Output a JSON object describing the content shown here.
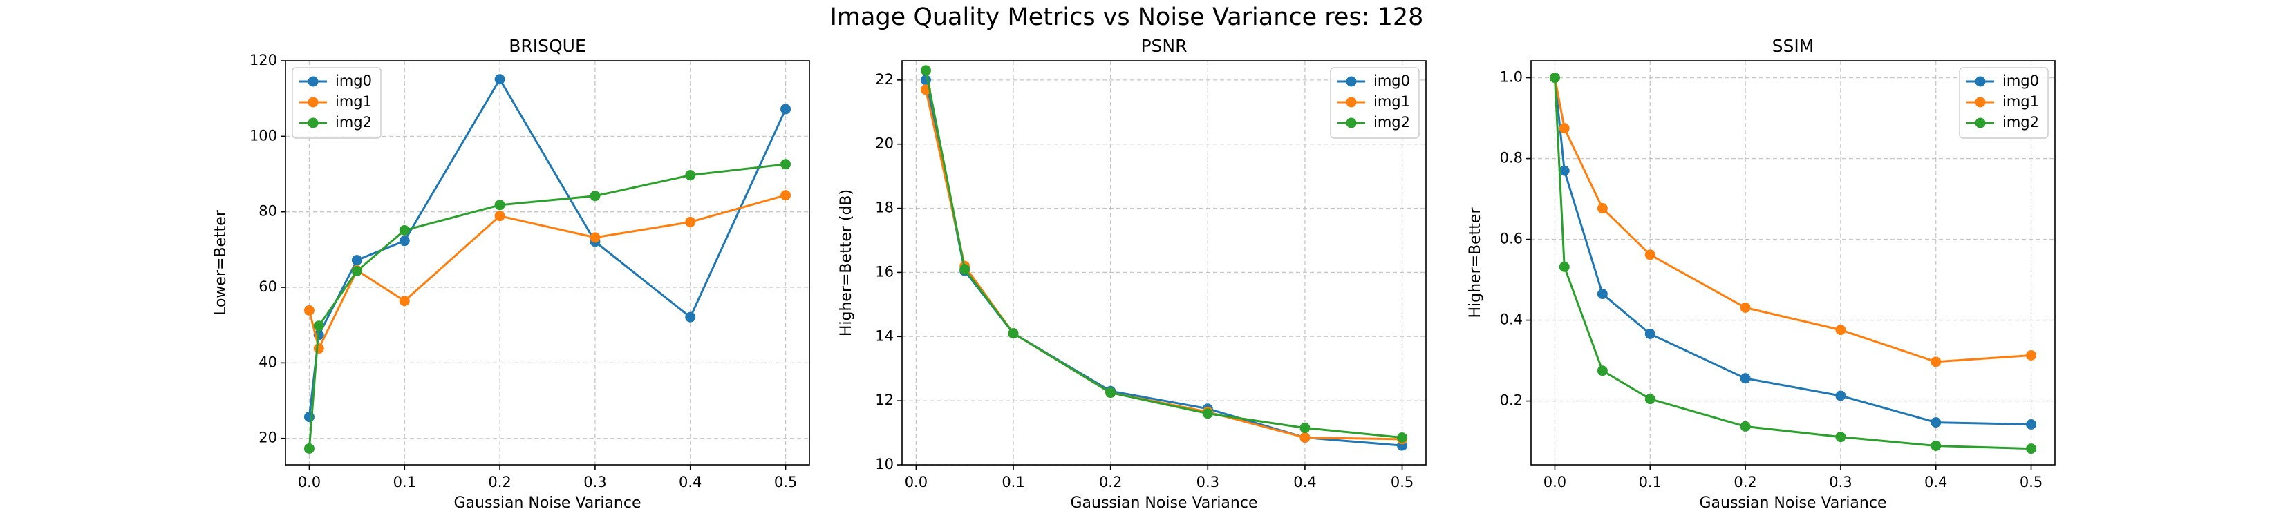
{
  "suptitle": "Image Quality Metrics vs Noise Variance res: 128",
  "chart_data": [
    {
      "type": "line",
      "title": "BRISQUE",
      "xlabel": "Gaussian Noise Variance",
      "ylabel": "Lower=Better",
      "xlim": [
        -0.025,
        0.525
      ],
      "ylim": [
        13,
        120
      ],
      "xticks": [
        0.0,
        0.1,
        0.2,
        0.3,
        0.4,
        0.5
      ],
      "xtick_labels": [
        "0.0",
        "0.1",
        "0.2",
        "0.3",
        "0.4",
        "0.5"
      ],
      "yticks": [
        20,
        40,
        60,
        80,
        100,
        120
      ],
      "ytick_labels": [
        "20",
        "40",
        "60",
        "80",
        "100",
        "120"
      ],
      "grid": true,
      "legend_position": "top-left",
      "x": [
        0.0,
        0.01,
        0.05,
        0.1,
        0.2,
        0.3,
        0.4,
        0.5
      ],
      "series": [
        {
          "name": "img0",
          "color": "#1f77b4",
          "x": [
            0.0,
            0.01,
            0.05,
            0.1,
            0.2,
            0.3,
            0.4,
            0.5
          ],
          "values": [
            25.7,
            47.4,
            67.2,
            72.3,
            115.1,
            72.1,
            52.1,
            107.2
          ]
        },
        {
          "name": "img1",
          "color": "#ff7f0e",
          "x": [
            0.0,
            0.01,
            0.05,
            0.1,
            0.2,
            0.3,
            0.4,
            0.5
          ],
          "values": [
            53.9,
            43.8,
            64.5,
            56.4,
            78.9,
            73.2,
            77.3,
            84.4
          ]
        },
        {
          "name": "img2",
          "color": "#2ca02c",
          "x": [
            0.0,
            0.01,
            0.05,
            0.1,
            0.2,
            0.3,
            0.4,
            0.5
          ],
          "values": [
            17.3,
            49.8,
            64.3,
            75.1,
            81.8,
            84.2,
            89.7,
            92.6
          ]
        }
      ]
    },
    {
      "type": "line",
      "title": "PSNR",
      "xlabel": "Gaussian Noise Variance",
      "ylabel": "Higher=Better (dB)",
      "xlim": [
        -0.0145,
        0.5245
      ],
      "ylim": [
        10,
        22.6
      ],
      "xticks": [
        0.0,
        0.1,
        0.2,
        0.3,
        0.4,
        0.5
      ],
      "xtick_labels": [
        "0.0",
        "0.1",
        "0.2",
        "0.3",
        "0.4",
        "0.5"
      ],
      "yticks": [
        10,
        12,
        14,
        16,
        18,
        20,
        22
      ],
      "ytick_labels": [
        "10",
        "12",
        "14",
        "16",
        "18",
        "20",
        "22"
      ],
      "grid": true,
      "legend_position": "top-right",
      "x": [
        0.01,
        0.05,
        0.1,
        0.2,
        0.3,
        0.4,
        0.5
      ],
      "series": [
        {
          "name": "img0",
          "color": "#1f77b4",
          "x": [
            0.01,
            0.05,
            0.1,
            0.2,
            0.3,
            0.4,
            0.5
          ],
          "values": [
            22.0,
            16.05,
            14.1,
            12.3,
            11.75,
            10.85,
            10.6
          ]
        },
        {
          "name": "img1",
          "color": "#ff7f0e",
          "x": [
            0.01,
            0.05,
            0.1,
            0.2,
            0.3,
            0.4,
            0.5
          ],
          "values": [
            21.7,
            16.2,
            14.1,
            12.25,
            11.65,
            10.85,
            10.8
          ]
        },
        {
          "name": "img2",
          "color": "#2ca02c",
          "x": [
            0.01,
            0.05,
            0.1,
            0.2,
            0.3,
            0.4,
            0.5
          ],
          "values": [
            22.3,
            16.1,
            14.1,
            12.25,
            11.6,
            11.15,
            10.85
          ]
        }
      ]
    },
    {
      "type": "line",
      "title": "SSIM",
      "xlabel": "Gaussian Noise Variance",
      "ylabel": "Higher=Better",
      "xlim": [
        -0.025,
        0.525
      ],
      "ylim": [
        0.042,
        1.042
      ],
      "xticks": [
        0.0,
        0.1,
        0.2,
        0.3,
        0.4,
        0.5
      ],
      "xtick_labels": [
        "0.0",
        "0.1",
        "0.2",
        "0.3",
        "0.4",
        "0.5"
      ],
      "yticks": [
        0.2,
        0.4,
        0.6,
        0.8,
        1.0
      ],
      "ytick_labels": [
        "0.2",
        "0.4",
        "0.6",
        "0.8",
        "1.0"
      ],
      "grid": true,
      "legend_position": "top-right",
      "x": [
        0.0,
        0.01,
        0.05,
        0.1,
        0.2,
        0.3,
        0.4,
        0.5
      ],
      "series": [
        {
          "name": "img0",
          "color": "#1f77b4",
          "x": [
            0.0,
            0.01,
            0.05,
            0.1,
            0.2,
            0.3,
            0.4,
            0.5
          ],
          "values": [
            1.0,
            0.77,
            0.465,
            0.366,
            0.256,
            0.213,
            0.147,
            0.142
          ]
        },
        {
          "name": "img1",
          "color": "#ff7f0e",
          "x": [
            0.0,
            0.01,
            0.05,
            0.1,
            0.2,
            0.3,
            0.4,
            0.5
          ],
          "values": [
            1.0,
            0.875,
            0.677,
            0.562,
            0.431,
            0.376,
            0.297,
            0.313
          ]
        },
        {
          "name": "img2",
          "color": "#2ca02c",
          "x": [
            0.0,
            0.01,
            0.05,
            0.1,
            0.2,
            0.3,
            0.4,
            0.5
          ],
          "values": [
            1.0,
            0.532,
            0.275,
            0.205,
            0.137,
            0.111,
            0.089,
            0.082
          ]
        }
      ]
    }
  ]
}
